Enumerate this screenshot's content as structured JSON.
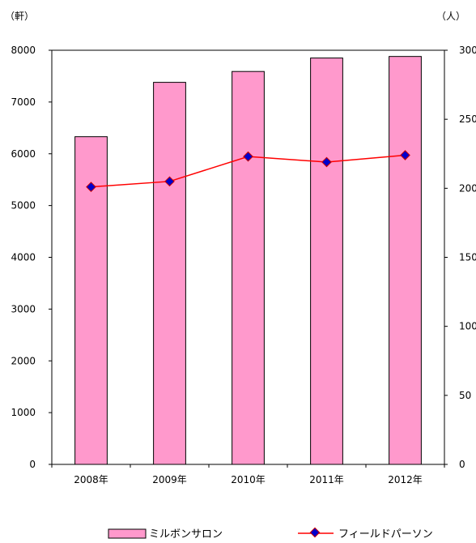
{
  "chart_data": {
    "type": "bar",
    "categories": [
      "2008年",
      "2009年",
      "2010年",
      "2011年",
      "2012年"
    ],
    "series": [
      {
        "name": "ミルボンサロン",
        "type": "bar",
        "axis": "left",
        "color": "#FF99CC",
        "values": [
          6330,
          7380,
          7590,
          7850,
          7880
        ]
      },
      {
        "name": "フィールドパーソン",
        "type": "line",
        "axis": "right",
        "color": "#FF0000",
        "marker_color": "#0000CC",
        "values": [
          201,
          205,
          223,
          219,
          224
        ]
      }
    ],
    "y_left": {
      "label": "（軒）",
      "ylim": [
        0,
        8000
      ],
      "ticks": [
        "0",
        "1000",
        "2000",
        "3000",
        "4000",
        "5000",
        "6000",
        "7000",
        "8000"
      ]
    },
    "y_right": {
      "label": "（人）",
      "ylim": [
        0,
        300
      ],
      "ticks": [
        "0",
        "50",
        "100",
        "150",
        "200",
        "250",
        "300"
      ]
    },
    "legend_position": "bottom"
  }
}
